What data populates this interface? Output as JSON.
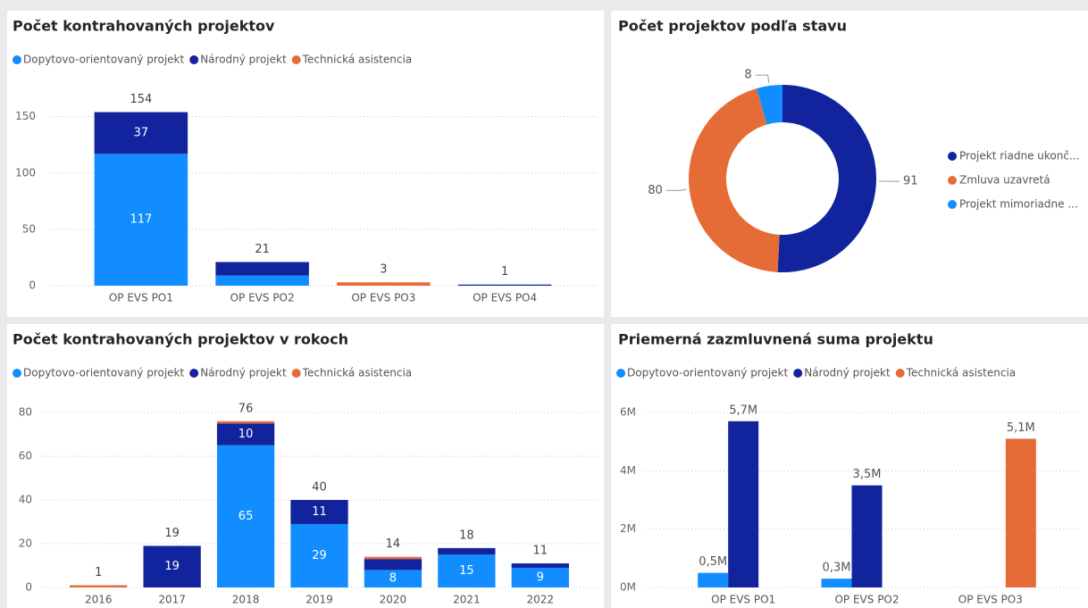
{
  "chart_data": [
    {
      "type": "stacked_bar",
      "title": "Počet kontrahovaných projektov",
      "categories": [
        "OP EVS PO1",
        "OP EVS PO2",
        "OP EVS PO3",
        "OP EVS PO4"
      ],
      "series": [
        {
          "name": "Dopytovo-orientovaný projekt",
          "color": "#118dff",
          "values": [
            117,
            9,
            null,
            null
          ]
        },
        {
          "name": "Národný projekt",
          "color": "#12239e",
          "values": [
            37,
            12,
            null,
            1
          ]
        },
        {
          "name": "Technická asistencia",
          "color": "#e66c37",
          "values": [
            null,
            null,
            3,
            null
          ]
        }
      ],
      "totals": [
        154,
        21,
        3,
        1
      ],
      "ylim": [
        0,
        160
      ],
      "yticks": [
        0,
        50,
        100,
        150
      ],
      "grid": true
    },
    {
      "type": "donut",
      "title": "Počet projektov podľa stavu",
      "categories": [
        "Projekt riadne ukonč...",
        "Zmluva uzavretá",
        "Projekt mimoriadne ..."
      ],
      "values": [
        91,
        80,
        8
      ],
      "colors": [
        "#12239e",
        "#e66c37",
        "#118dff"
      ]
    },
    {
      "type": "stacked_bar",
      "title": "Počet kontrahovaných projektov v rokoch",
      "categories": [
        "2016",
        "2017",
        "2018",
        "2019",
        "2020",
        "2021",
        "2022"
      ],
      "series": [
        {
          "name": "Dopytovo-orientovaný projekt",
          "color": "#118dff",
          "values": [
            null,
            null,
            65,
            29,
            8,
            15,
            9
          ]
        },
        {
          "name": "Národný projekt",
          "color": "#12239e",
          "values": [
            null,
            19,
            10,
            11,
            5,
            3,
            2
          ]
        },
        {
          "name": "Technická asistencia",
          "color": "#e66c37",
          "values": [
            1,
            null,
            1,
            null,
            1,
            null,
            null
          ]
        }
      ],
      "totals": [
        1,
        19,
        76,
        40,
        14,
        18,
        11
      ],
      "ylim": [
        0,
        80
      ],
      "yticks": [
        0,
        20,
        40,
        60,
        80
      ],
      "grid": true
    },
    {
      "type": "grouped_bar",
      "title": "Priemerná zazmluvnená suma projektu",
      "categories": [
        "OP EVS PO1",
        "OP EVS PO2",
        "OP EVS PO3"
      ],
      "series": [
        {
          "name": "Dopytovo-orientovaný projekt",
          "color": "#118dff",
          "values": [
            500000,
            300000,
            null
          ],
          "value_labels": [
            "0,5M",
            "0,3M",
            null
          ]
        },
        {
          "name": "Národný projekt",
          "color": "#12239e",
          "values": [
            5700000,
            3500000,
            null
          ],
          "value_labels": [
            "5,7M",
            "3,5M",
            null
          ]
        },
        {
          "name": "Technická asistencia",
          "color": "#e66c37",
          "values": [
            null,
            null,
            5100000
          ],
          "value_labels": [
            null,
            null,
            "5,1M"
          ]
        }
      ],
      "ylim": [
        0,
        6000000
      ],
      "yticks": [
        {
          "value": 0,
          "label": "0M"
        },
        {
          "value": 2000000,
          "label": "2M"
        },
        {
          "value": 4000000,
          "label": "4M"
        },
        {
          "value": 6000000,
          "label": "6M"
        }
      ],
      "grid": true
    }
  ]
}
